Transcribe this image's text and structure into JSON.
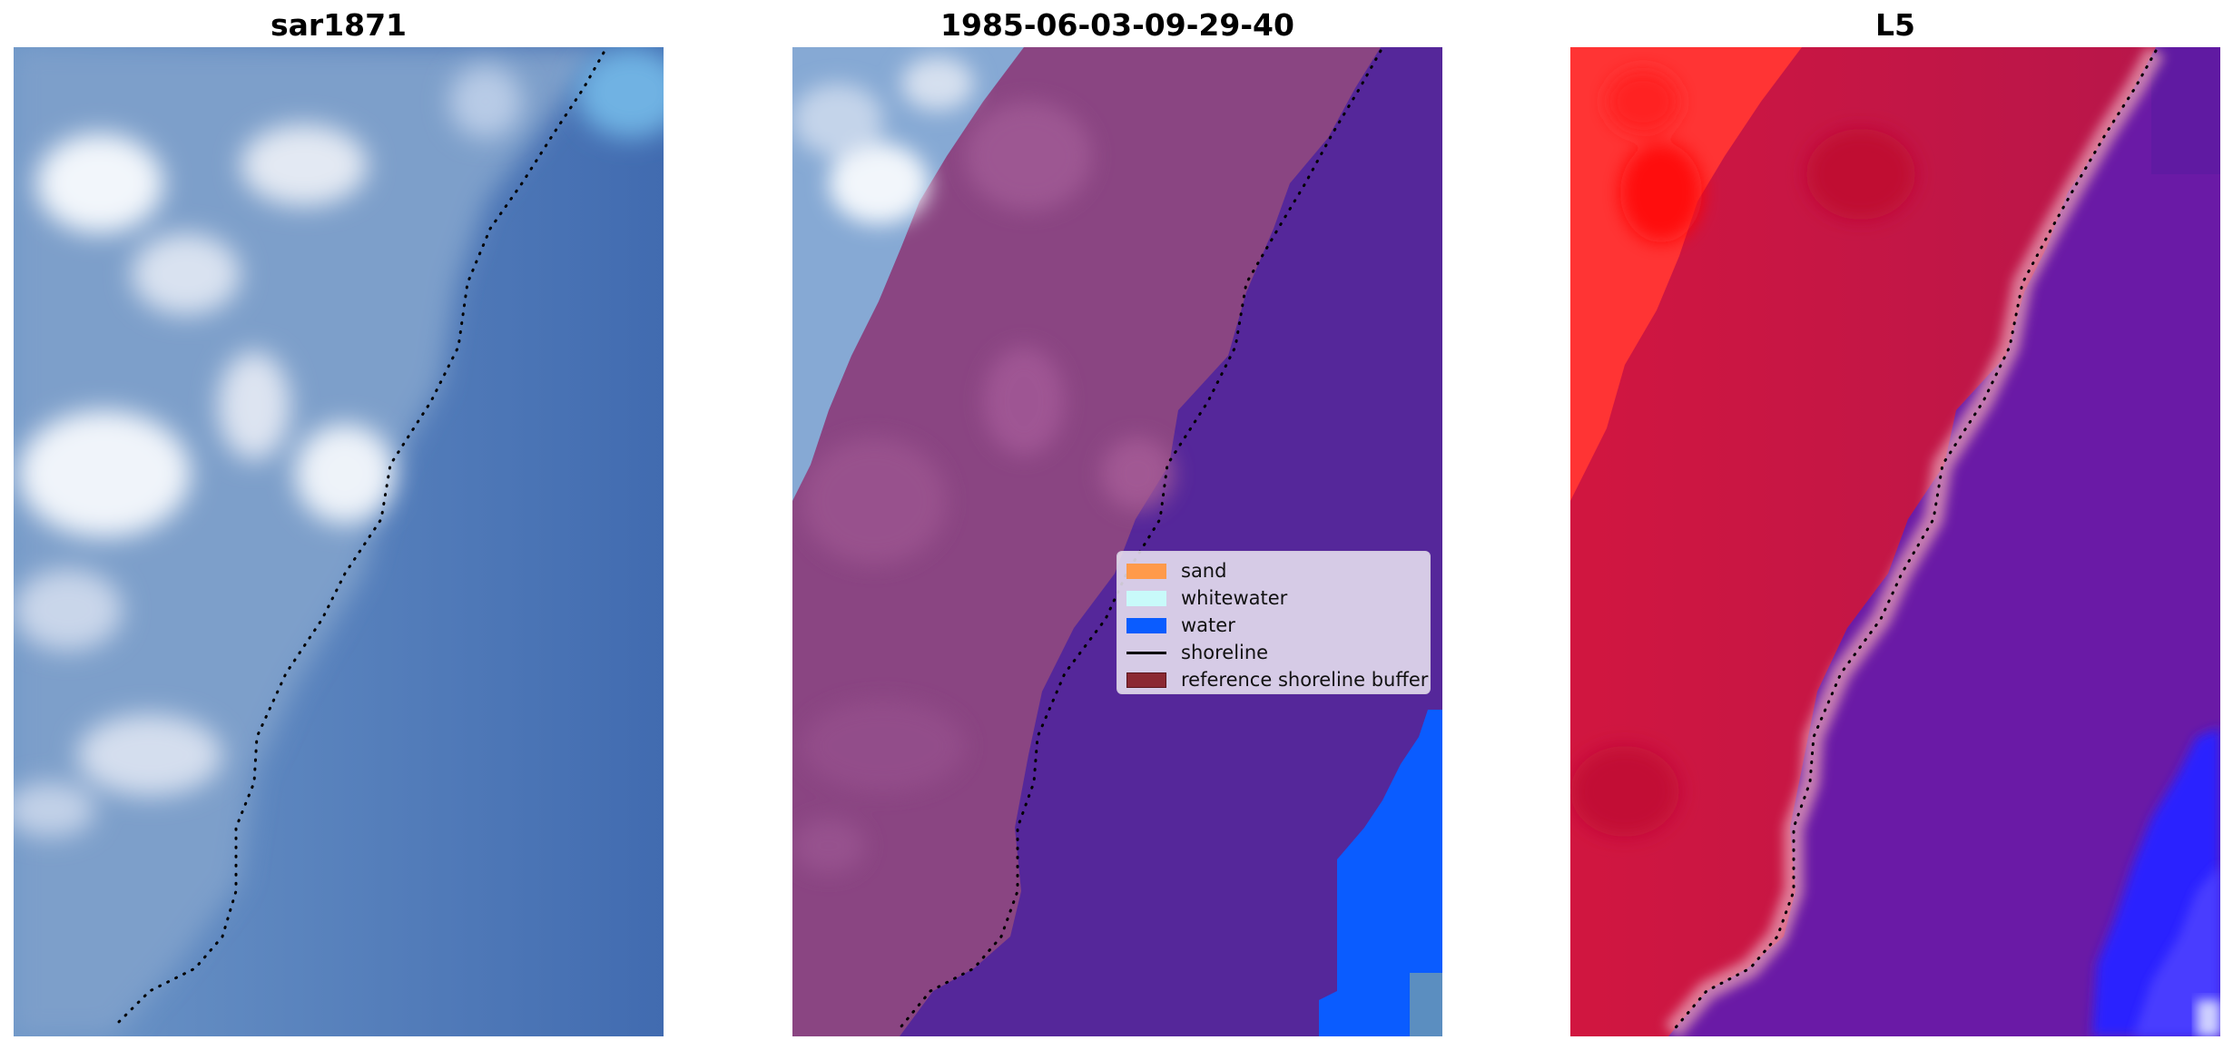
{
  "panels": [
    {
      "title": "sar1871"
    },
    {
      "title": "1985-06-03-09-29-40"
    },
    {
      "title": "L5"
    }
  ],
  "legend": {
    "items": [
      {
        "label": "sand",
        "color": "#ff9a4a"
      },
      {
        "label": "whitewater",
        "color": "#c8fafa"
      },
      {
        "label": "water",
        "color": "#0a5cff"
      },
      {
        "label": "shoreline",
        "color": "#000000"
      },
      {
        "label": "reference shoreline buffer",
        "color": "#8b2832"
      }
    ]
  },
  "colors": {
    "sand_class_overlay": "#a04d8c",
    "water_class_overlay": "#55279a",
    "water_pixels": "#0a5cff",
    "land_index": "#c8123c",
    "water_index": "#6a1aa6"
  }
}
